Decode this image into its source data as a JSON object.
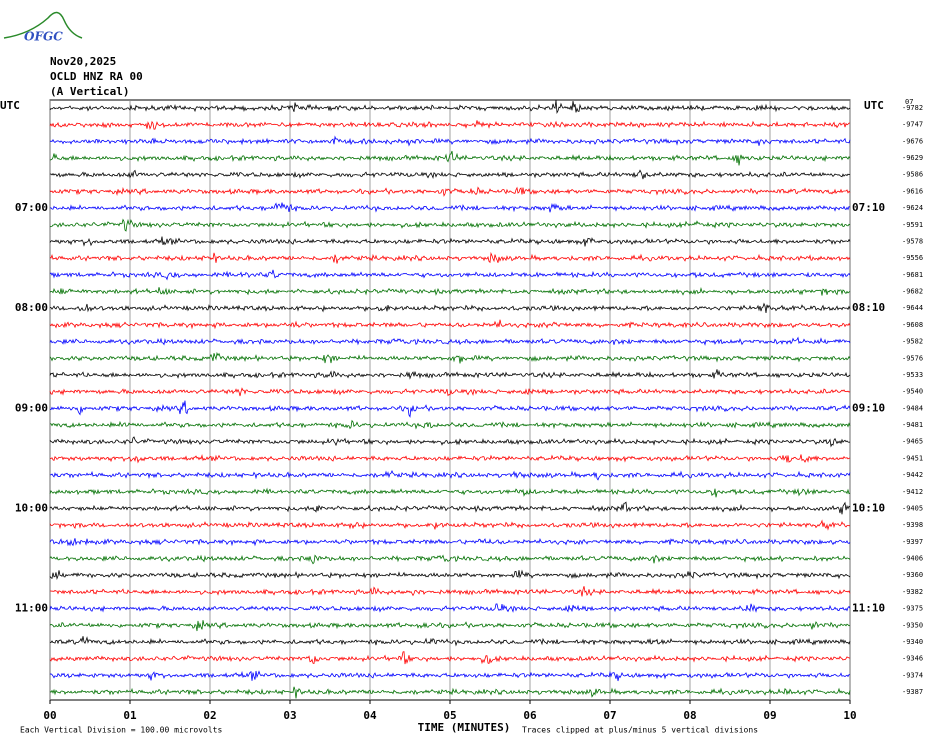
{
  "header": {
    "logo": "OFGC",
    "date": "Nov20,2025",
    "station": "OCLD HNZ RA 00",
    "component": "(A Vertical)"
  },
  "chart_data": {
    "type": "helicorder",
    "left_axis_label": "UTC",
    "right_axis_label": "UTC",
    "corner_label": "07",
    "colors": [
      "#000000",
      "#ff0000",
      "#0000ff",
      "#007000"
    ],
    "left_labels": [
      null,
      null,
      null,
      null,
      null,
      null,
      "07:00",
      null,
      null,
      null,
      null,
      null,
      "08:00",
      null,
      null,
      null,
      null,
      null,
      "09:00",
      null,
      null,
      null,
      null,
      null,
      "10:00",
      null,
      null,
      null,
      null,
      null,
      "11:00",
      null,
      null,
      null,
      null,
      null
    ],
    "right_labels": [
      null,
      null,
      null,
      null,
      null,
      null,
      "07:10",
      null,
      null,
      null,
      null,
      null,
      "08:10",
      null,
      null,
      null,
      null,
      null,
      "09:10",
      null,
      null,
      null,
      null,
      null,
      "10:10",
      null,
      null,
      null,
      null,
      null,
      "11:10",
      null,
      null,
      null,
      null,
      null
    ],
    "trace_offsets": [
      -9782,
      -9747,
      -9676,
      -9629,
      -9586,
      -9616,
      -9624,
      -9591,
      -9578,
      -9556,
      -9681,
      -9682,
      -9644,
      -9608,
      -9582,
      -9576,
      -9533,
      -9540,
      -9484,
      -9481,
      -9465,
      -9451,
      -9442,
      -9412,
      -9405,
      -9398,
      -9397,
      -9406,
      -9360,
      -9382,
      -9375,
      -9350,
      -9340,
      -9346,
      -9374,
      -9387
    ],
    "xlim": [
      0,
      10
    ],
    "xticks": [
      {
        "value": 0,
        "label": "00"
      },
      {
        "value": 1,
        "label": "01"
      },
      {
        "value": 2,
        "label": "02"
      },
      {
        "value": 3,
        "label": "03"
      },
      {
        "value": 4,
        "label": "04"
      },
      {
        "value": 5,
        "label": "05"
      },
      {
        "value": 6,
        "label": "06"
      },
      {
        "value": 7,
        "label": "07"
      },
      {
        "value": 8,
        "label": "08"
      },
      {
        "value": 9,
        "label": "09"
      },
      {
        "value": 10,
        "label": "10"
      }
    ],
    "xlabel": "TIME (MINUTES)",
    "footnotes": [
      "Each Vertical Division =  100.00 microvolts",
      "Traces clipped at plus/minus 5 vertical divisions"
    ]
  }
}
